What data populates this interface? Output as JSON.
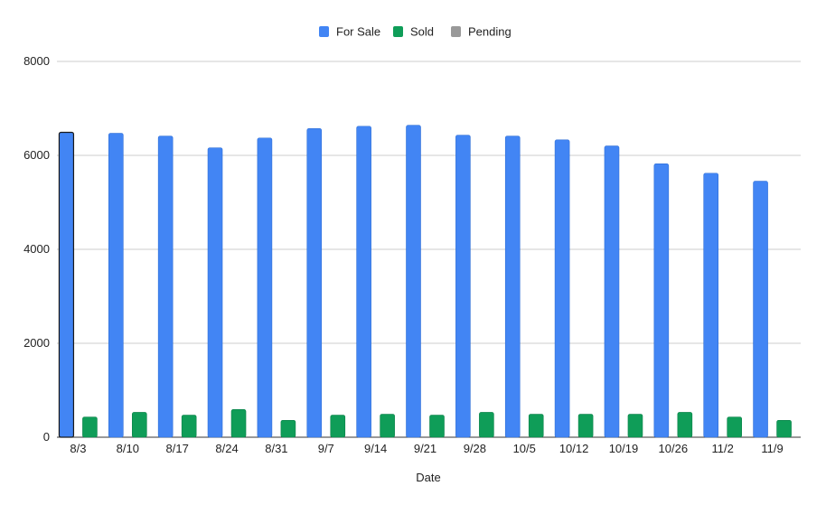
{
  "chart_data": {
    "type": "bar",
    "title": "",
    "xlabel": "Date",
    "ylabel": "",
    "ylim": [
      0,
      8000
    ],
    "yticks": [
      0,
      2000,
      4000,
      6000,
      8000
    ],
    "grid": true,
    "legend_position": "top",
    "categories": [
      "8/3",
      "8/10",
      "8/17",
      "8/24",
      "8/31",
      "9/7",
      "9/14",
      "9/21",
      "9/28",
      "10/5",
      "10/12",
      "10/19",
      "10/26",
      "11/2",
      "11/9"
    ],
    "series": [
      {
        "name": "For Sale",
        "color": "#4285f4",
        "values": [
          6490,
          6470,
          6410,
          6160,
          6370,
          6570,
          6620,
          6640,
          6430,
          6410,
          6330,
          6200,
          5820,
          5620,
          5450
        ]
      },
      {
        "name": "Sold",
        "color": "#0f9d58",
        "values": [
          430,
          530,
          470,
          590,
          360,
          470,
          490,
          470,
          530,
          490,
          490,
          490,
          530,
          430,
          360
        ]
      },
      {
        "name": "Pending",
        "color": "#999999",
        "values": [
          0,
          0,
          0,
          0,
          0,
          0,
          0,
          0,
          0,
          0,
          0,
          0,
          0,
          0,
          0
        ]
      }
    ]
  }
}
